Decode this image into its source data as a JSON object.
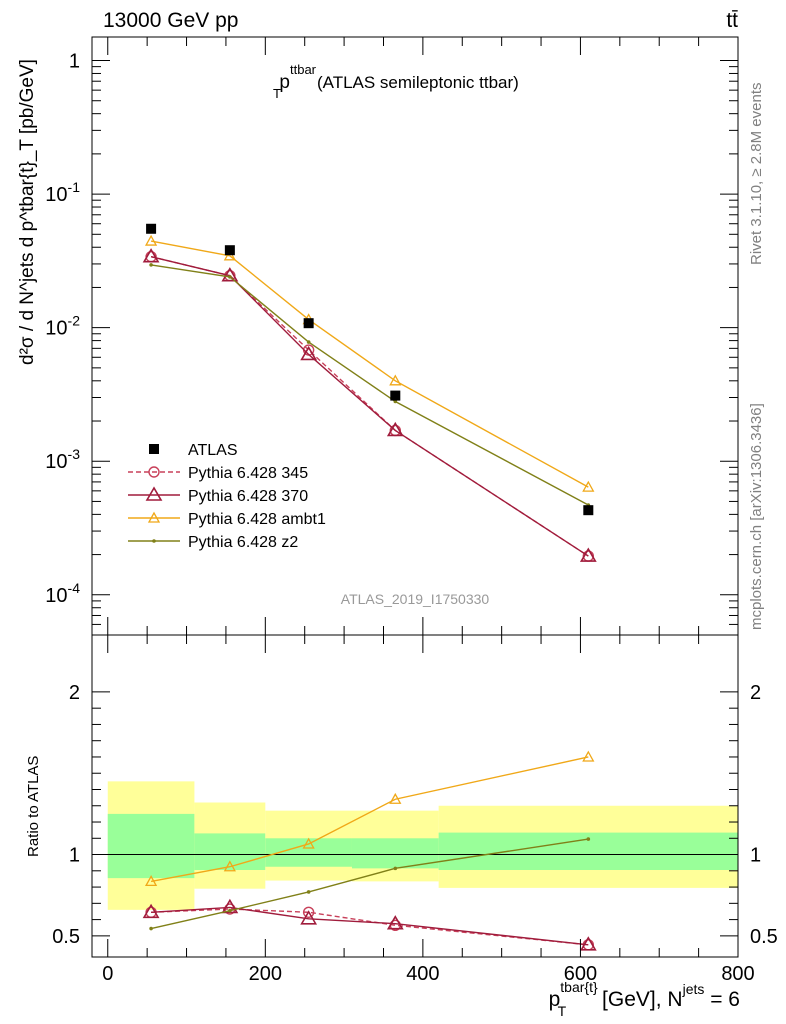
{
  "header": {
    "energy_label": "13000 GeV pp",
    "process_label": "tt̄"
  },
  "side_text": {
    "rivet": "Rivet 3.1.10, ≥ 2.8M events",
    "mcplots": "mcplots.cern.ch [arXiv:1306.3436]"
  },
  "chart_data": [
    {
      "type": "scatter",
      "title_main": "p",
      "title_sup": "ttbar",
      "title_sub": "T",
      "title_rest": "(ATLAS semileptonic ttbar)",
      "watermark": "ATLAS_2019_I1750330",
      "ylabel": "d²σ / d N^jets d p^tbar{t}_T [pb/GeV]",
      "yscale": "log",
      "ylim": [
        5e-05,
        1.5
      ],
      "xlim": [
        -20,
        800
      ],
      "ytick_labels": [
        {
          "base": "1",
          "exp": ""
        },
        {
          "base": "10",
          "exp": "-1"
        },
        {
          "base": "10",
          "exp": "-2"
        },
        {
          "base": "10",
          "exp": "-3"
        },
        {
          "base": "10",
          "exp": "-4"
        }
      ],
      "legend_position": "bottom-left",
      "series": [
        {
          "name": "ATLAS",
          "marker": "filled-square",
          "color": "#000000",
          "x": [
            55,
            155,
            255,
            365,
            610
          ],
          "y": [
            0.055,
            0.038,
            0.0108,
            0.0031,
            0.00043
          ]
        },
        {
          "name": "Pythia 6.428 345",
          "marker": "open-circle",
          "line": "dashed",
          "color": "#c8405a",
          "x": [
            55,
            155,
            255,
            365,
            610
          ],
          "y": [
            0.034,
            0.0245,
            0.0068,
            0.0017,
            0.000195
          ]
        },
        {
          "name": "Pythia 6.428 370",
          "marker": "open-triangle",
          "line": "solid",
          "color": "#a01c3c",
          "x": [
            55,
            155,
            255,
            365,
            610
          ],
          "y": [
            0.034,
            0.0245,
            0.0063,
            0.0017,
            0.000195
          ]
        },
        {
          "name": "Pythia 6.428 ambt1",
          "marker": "open-triangle-small",
          "line": "solid",
          "color": "#f0a818",
          "x": [
            55,
            155,
            255,
            365,
            610
          ],
          "y": [
            0.0445,
            0.0345,
            0.0115,
            0.004,
            0.00064
          ]
        },
        {
          "name": "Pythia 6.428 z2",
          "marker": "dot",
          "line": "solid",
          "color": "#808018",
          "x": [
            55,
            155,
            255,
            365,
            610
          ],
          "y": [
            0.0295,
            0.024,
            0.0078,
            0.0028,
            0.00047
          ]
        }
      ]
    },
    {
      "type": "line",
      "ylabel": "Ratio to ATLAS",
      "xlabel_main": "p",
      "xlabel_sup": "tbar{t}",
      "xlabel_sub": "T",
      "xlabel_rest": " [GeV], N",
      "xlabel_sup2": "jets",
      "xlabel_end": " = 6",
      "ylim": [
        0.37,
        2.35
      ],
      "xlim": [
        -20,
        800
      ],
      "xtick_labels": [
        "0",
        "200",
        "400",
        "600",
        "800"
      ],
      "ytick_labels": [
        "2",
        "1",
        "0.5"
      ],
      "bins": [
        {
          "lo": 0,
          "hi": 110,
          "stat_lo": 0.855,
          "stat_hi": 1.25,
          "tot_lo": 0.66,
          "tot_hi": 1.45
        },
        {
          "lo": 110,
          "hi": 200,
          "stat_lo": 0.905,
          "stat_hi": 1.13,
          "tot_lo": 0.79,
          "tot_hi": 1.32
        },
        {
          "lo": 200,
          "hi": 310,
          "stat_lo": 0.925,
          "stat_hi": 1.1,
          "tot_lo": 0.84,
          "tot_hi": 1.27
        },
        {
          "lo": 310,
          "hi": 420,
          "stat_lo": 0.915,
          "stat_hi": 1.1,
          "tot_lo": 0.835,
          "tot_hi": 1.27
        },
        {
          "lo": 420,
          "hi": 800,
          "stat_lo": 0.905,
          "stat_hi": 1.135,
          "tot_lo": 0.795,
          "tot_hi": 1.3
        }
      ],
      "series": [
        {
          "name": "Pythia 6.428 345",
          "marker": "open-circle",
          "line": "dashed",
          "color": "#c8405a",
          "x": [
            55,
            155,
            255,
            365,
            610
          ],
          "y": [
            0.645,
            0.665,
            0.645,
            0.565,
            0.445
          ]
        },
        {
          "name": "Pythia 6.428 370",
          "marker": "open-triangle",
          "line": "solid",
          "color": "#a01c3c",
          "x": [
            55,
            155,
            255,
            365,
            610
          ],
          "y": [
            0.645,
            0.675,
            0.605,
            0.575,
            0.445
          ]
        },
        {
          "name": "Pythia 6.428 ambt1",
          "marker": "open-triangle-small",
          "line": "solid",
          "color": "#f0a818",
          "x": [
            55,
            155,
            255,
            365,
            610
          ],
          "y": [
            0.835,
            0.925,
            1.065,
            1.34,
            1.6
          ]
        },
        {
          "name": "Pythia 6.428 z2",
          "marker": "dot",
          "line": "solid",
          "color": "#808018",
          "x": [
            55,
            155,
            255,
            365,
            610
          ],
          "y": [
            0.545,
            0.655,
            0.77,
            0.915,
            1.095
          ]
        }
      ]
    }
  ]
}
